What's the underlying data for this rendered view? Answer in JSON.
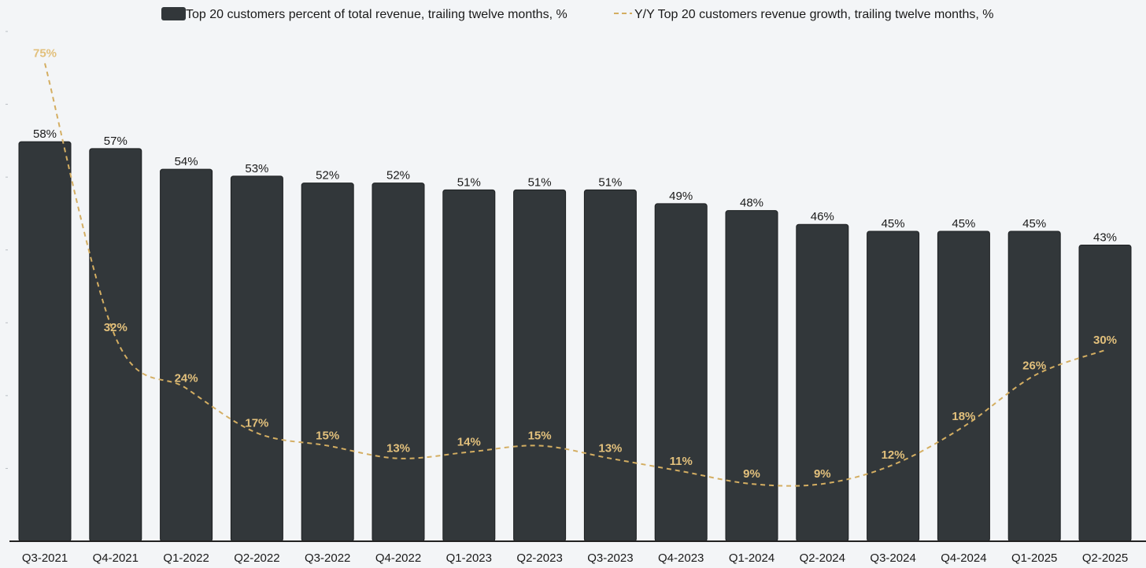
{
  "chart_data": {
    "type": "bar",
    "title": "",
    "xlabel": "",
    "ylabel": "",
    "categories": [
      "Q3-2021",
      "Q4-2021",
      "Q1-2022",
      "Q2-2022",
      "Q3-2022",
      "Q4-2022",
      "Q1-2023",
      "Q2-2023",
      "Q3-2023",
      "Q4-2023",
      "Q1-2024",
      "Q2-2024",
      "Q3-2024",
      "Q4-2024",
      "Q1-2025",
      "Q2-2025"
    ],
    "series": [
      {
        "name": "Top 20 customers percent of total revenue, trailing twelve months, %",
        "kind": "bar",
        "color": "#32373a",
        "values": [
          58,
          57,
          54,
          53,
          52,
          52,
          51,
          51,
          51,
          49,
          48,
          46,
          45,
          45,
          45,
          43
        ],
        "labels": [
          "58%",
          "57%",
          "54%",
          "53%",
          "52%",
          "52%",
          "51%",
          "51%",
          "51%",
          "49%",
          "48%",
          "46%",
          "45%",
          "45%",
          "45%",
          "43%"
        ]
      },
      {
        "name": "Y/Y Top 20 customers revenue growth, trailing twelve months, %",
        "kind": "line",
        "style": "dashed",
        "color": "#d4ae62",
        "label_color": "#e2c07c",
        "values": [
          75,
          32,
          24,
          17,
          15,
          13,
          14,
          15,
          13,
          11,
          9,
          9,
          12,
          18,
          26,
          30
        ],
        "labels": [
          "75%",
          "32%",
          "24%",
          "17%",
          "15%",
          "13%",
          "14%",
          "15%",
          "13%",
          "11%",
          "9%",
          "9%",
          "12%",
          "18%",
          "26%",
          "30%"
        ]
      }
    ],
    "bar_ylim": [
      0,
      74
    ],
    "line_ylim": [
      0,
      80
    ],
    "grid": false,
    "legend_position": "top-center",
    "axis_color": "#222222"
  }
}
